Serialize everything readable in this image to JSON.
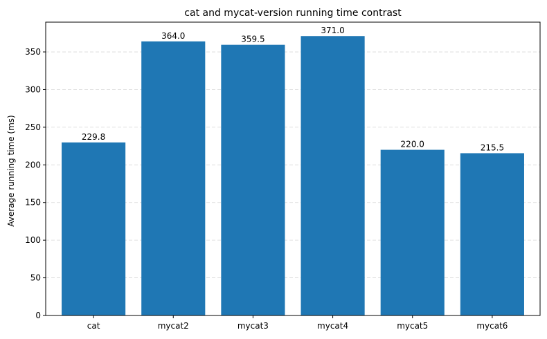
{
  "chart_data": {
    "type": "bar",
    "title": "cat and mycat-version running time contrast",
    "xlabel": "",
    "ylabel": "Average running time (ms)",
    "categories": [
      "cat",
      "mycat2",
      "mycat3",
      "mycat4",
      "mycat5",
      "mycat6"
    ],
    "values": [
      229.8,
      364.0,
      359.5,
      371.0,
      220.0,
      215.5
    ],
    "value_labels": [
      "229.8",
      "364.0",
      "359.5",
      "371.0",
      "220.0",
      "215.5"
    ],
    "ylim": [
      0,
      389.55
    ],
    "yticks": [
      0,
      50,
      100,
      150,
      200,
      250,
      300,
      350
    ],
    "grid": "y, dashed",
    "bar_color": "#1f77b4"
  }
}
